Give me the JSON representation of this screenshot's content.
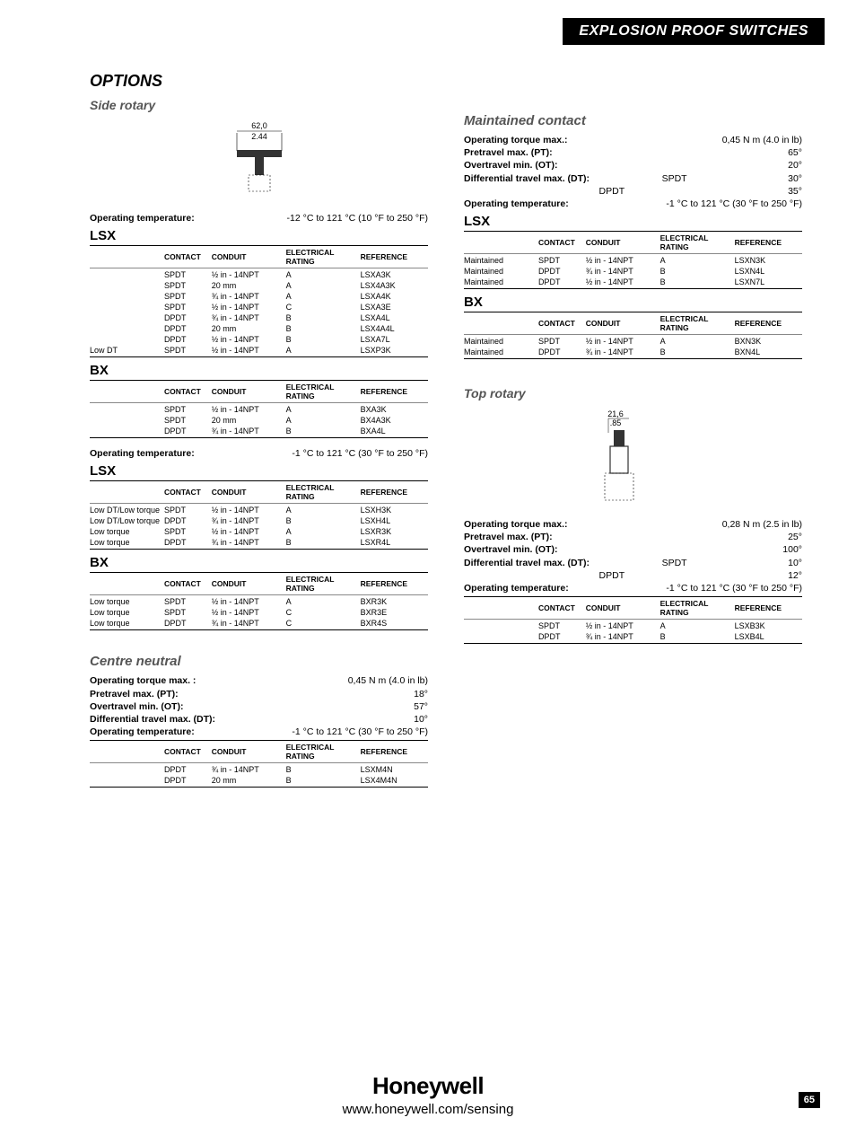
{
  "header": "EXPLOSION PROOF SWITCHES",
  "options_title": "OPTIONS",
  "side_rotary": {
    "title": "Side rotary",
    "dim_top": "62,0",
    "dim_bot": "2.44",
    "op_temp_label": "Operating temperature:",
    "op_temp1": "-12 °C to 121 °C (10 °F to 250 °F)",
    "lsx_label": "LSX",
    "headers": [
      "",
      "CONTACT",
      "CONDUIT",
      "ELECTRICAL RATING",
      "REFERENCE"
    ],
    "lsx1_rows": [
      [
        "",
        "SPDT",
        "½ in - 14NPT",
        "A",
        "LSXA3K"
      ],
      [
        "",
        "SPDT",
        "20 mm",
        "A",
        "LSX4A3K"
      ],
      [
        "",
        "SPDT",
        "¾ in - 14NPT",
        "A",
        "LSXA4K"
      ],
      [
        "",
        "SPDT",
        "½ in - 14NPT",
        "C",
        "LSXA3E"
      ],
      [
        "",
        "DPDT",
        "¾ in - 14NPT",
        "B",
        "LSXA4L"
      ],
      [
        "",
        "DPDT",
        "20 mm",
        "B",
        "LSX4A4L"
      ],
      [
        "",
        "DPDT",
        "½ in - 14NPT",
        "B",
        "LSXA7L"
      ],
      [
        "Low DT",
        "SPDT",
        "½ in - 14NPT",
        "A",
        "LSXP3K"
      ]
    ],
    "bx_label": "BX",
    "bx1_rows": [
      [
        "",
        "SPDT",
        "½ in - 14NPT",
        "A",
        "BXA3K"
      ],
      [
        "",
        "SPDT",
        "20 mm",
        "A",
        "BX4A3K"
      ],
      [
        "",
        "DPDT",
        "¾ in - 14NPT",
        "B",
        "BXA4L"
      ]
    ],
    "op_temp2": "-1 °C to 121 °C (30 °F to 250 °F)",
    "lsx2_rows": [
      [
        "Low DT/Low torque",
        "SPDT",
        "½ in - 14NPT",
        "A",
        "LSXH3K"
      ],
      [
        "Low DT/Low torque",
        "DPDT",
        "¾ in - 14NPT",
        "B",
        "LSXH4L"
      ],
      [
        "Low torque",
        "SPDT",
        "½ in - 14NPT",
        "A",
        "LSXR3K"
      ],
      [
        "Low torque",
        "DPDT",
        "¾ in - 14NPT",
        "B",
        "LSXR4L"
      ]
    ],
    "bx2_rows": [
      [
        "Low torque",
        "SPDT",
        "½ in - 14NPT",
        "A",
        "BXR3K"
      ],
      [
        "Low torque",
        "SPDT",
        "½ in - 14NPT",
        "C",
        "BXR3E"
      ],
      [
        "Low torque",
        "DPDT",
        "¾ in  - 14NPT",
        "C",
        "BXR4S"
      ]
    ]
  },
  "centre_neutral": {
    "title": "Centre neutral",
    "specs": [
      [
        "Operating torque max. :",
        "0,45 N m (4.0 in lb)"
      ],
      [
        "Pretravel max. (PT):",
        "18°"
      ],
      [
        "Overtravel min. (OT):",
        "57°"
      ],
      [
        "Differential travel max. (DT):",
        "10°"
      ],
      [
        "Operating temperature:",
        "-1 °C to 121 °C (30 °F to 250 °F)"
      ]
    ],
    "rows": [
      [
        "",
        "DPDT",
        "¾ in - 14NPT",
        "B",
        "LSXM4N"
      ],
      [
        "",
        "DPDT",
        "20 mm",
        "B",
        "LSX4M4N"
      ]
    ]
  },
  "maintained": {
    "title": "Maintained contact",
    "specs": [
      [
        "Operating torque max.:",
        "",
        "0,45 N m (4.0 in lb)"
      ],
      [
        "Pretravel max. (PT):",
        "",
        "65°"
      ],
      [
        "Overtravel min. (OT):",
        "",
        "20°"
      ],
      [
        "Differential travel max. (DT):",
        "SPDT",
        "30°"
      ],
      [
        "",
        "DPDT",
        "35°"
      ],
      [
        "Operating temperature:",
        "",
        "-1 °C to 121 °C (30 °F to 250 °F)"
      ]
    ],
    "lsx_label": "LSX",
    "lsx_rows": [
      [
        "Maintained",
        "SPDT",
        "½ in - 14NPT",
        "A",
        "LSXN3K"
      ],
      [
        "Maintained",
        "DPDT",
        "¾ in - 14NPT",
        "B",
        "LSXN4L"
      ],
      [
        "Maintained",
        "DPDT",
        "½ in - 14NPT",
        "B",
        "LSXN7L"
      ]
    ],
    "bx_label": "BX",
    "bx_rows": [
      [
        "Maintained",
        "SPDT",
        "½ in - 14NPT",
        "A",
        "BXN3K"
      ],
      [
        "Maintained",
        "DPDT",
        "¾ in - 14NPT",
        "B",
        "BXN4L"
      ]
    ]
  },
  "top_rotary": {
    "title": "Top rotary",
    "dim_top": "21,6",
    "dim_bot": ".85",
    "specs": [
      [
        "Operating torque max.:",
        "",
        "0,28 N m (2.5 in lb)"
      ],
      [
        "Pretravel max. (PT):",
        "",
        "25°"
      ],
      [
        "Overtravel min. (OT):",
        "",
        "100°"
      ],
      [
        "Differential travel max. (DT):",
        "SPDT",
        "10°"
      ],
      [
        "",
        "DPDT",
        "12°"
      ],
      [
        "Operating temperature:",
        "",
        "-1 °C to 121 °C (30 °F to 250 °F)"
      ]
    ],
    "rows": [
      [
        "",
        "SPDT",
        "½ in - 14NPT",
        "A",
        "LSXB3K"
      ],
      [
        "",
        "DPDT",
        "¾ in - 14NPT",
        "B",
        "LSXB4L"
      ]
    ]
  },
  "headers": [
    "",
    "CONTACT",
    "CONDUIT",
    "ELECTRICAL RATING",
    "REFERENCE"
  ],
  "footer": {
    "brand": "Honeywell",
    "url": "www.honeywell.com/sensing"
  },
  "pagenum": "65"
}
